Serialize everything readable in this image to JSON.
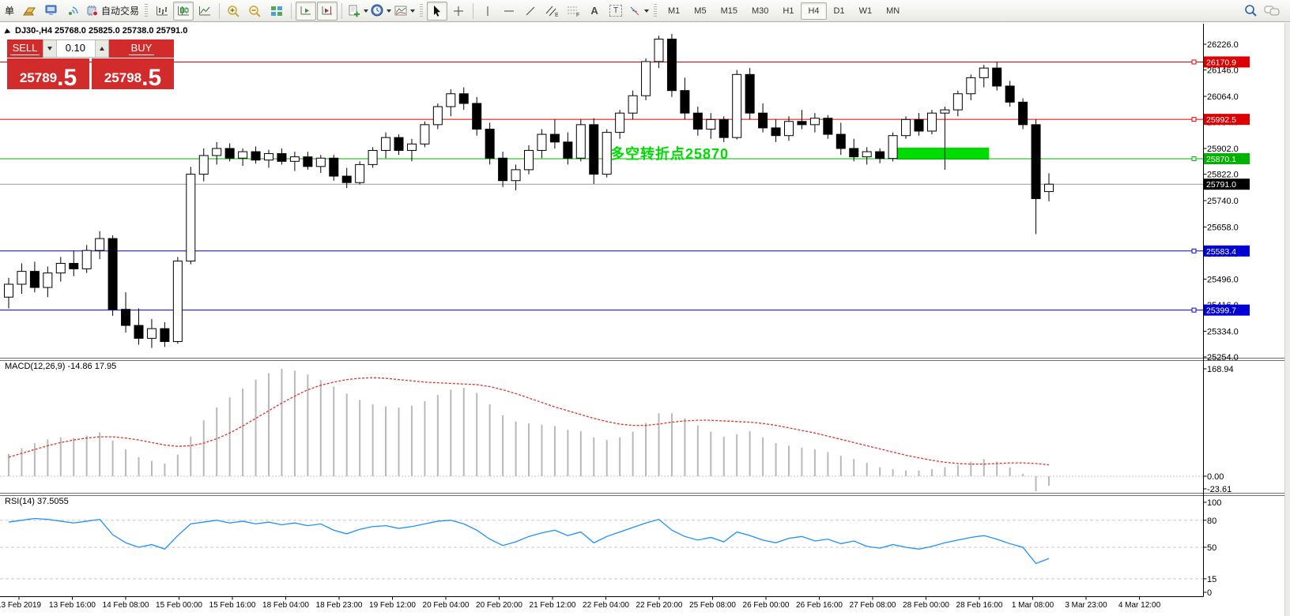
{
  "toolbar": {
    "partial_label": "单",
    "autotrade_label": "自动交易",
    "timeframes": [
      "M1",
      "M5",
      "M15",
      "M30",
      "H1",
      "H4",
      "D1",
      "W1",
      "MN"
    ],
    "active_timeframe": "H4"
  },
  "symbol_header": {
    "text": "DJ30-,H4 25768.0 25825.0 25738.0 25791.0"
  },
  "trade_panel": {
    "sell_label": "SELL",
    "buy_label": "BUY",
    "volume": "0.10",
    "sell_price_int": "25789",
    "sell_price_frac": ".5",
    "buy_price_int": "25798",
    "buy_price_frac": ".5",
    "panel_color": "#d22b2b"
  },
  "chart_data": {
    "type": "candlestick",
    "title": "DJ30-,H4",
    "main_scale": {
      "price_top": 26226,
      "price_bottom": 25254
    },
    "price_ticks": [
      "26226.0",
      "26146.0",
      "26064.0",
      "25984.0",
      "25902.0",
      "25822.0",
      "25740.0",
      "25658.0",
      "25576.0",
      "25496.0",
      "25416.0",
      "25334.0",
      "25254.0"
    ],
    "level_lines": [
      {
        "price": 26170.9,
        "label": "26170.9",
        "color": "red"
      },
      {
        "price": 25992.5,
        "label": "25992.5",
        "color": "red"
      },
      {
        "price": 25870.1,
        "label": "25870.1",
        "color": "green"
      },
      {
        "price": 25583.4,
        "label": "25583.4",
        "color": "blue"
      },
      {
        "price": 25399.7,
        "label": "25399.7",
        "color": "blue"
      }
    ],
    "bid": {
      "price": 25791.0,
      "label": "25791.0"
    },
    "annotation": {
      "text": "多空转折点25870"
    },
    "highlight": {
      "from_bar": 68.3,
      "to_bar": 75.4,
      "top_price": 25904.5,
      "bottom_price": 25867.6
    },
    "colors": {
      "bull": "#FFFFFF",
      "bear": "#000000",
      "wick": "#000000",
      "red_level": "#DD0000",
      "green_level": "#00B300",
      "blue_level": "#0000D6",
      "bid_line": "#9A9A9A",
      "bid_badge": "#000000",
      "macd_hist": "#B9B9B9",
      "macd_signal": "#E03030",
      "rsi": "#1E90FF",
      "grid_dash": "#C8C8C8",
      "highlight": "#00DC00",
      "annotation": "#00DC00"
    },
    "candles": [
      [
        25440,
        25500,
        25405,
        25480
      ],
      [
        25480,
        25545,
        25450,
        25520
      ],
      [
        25520,
        25550,
        25455,
        25470
      ],
      [
        25470,
        25535,
        25440,
        25515
      ],
      [
        25515,
        25565,
        25488,
        25545
      ],
      [
        25545,
        25585,
        25505,
        25528
      ],
      [
        25528,
        25602,
        25515,
        25585
      ],
      [
        25585,
        25645,
        25558,
        25622
      ],
      [
        25622,
        25632,
        25382,
        25402
      ],
      [
        25402,
        25455,
        25330,
        25352
      ],
      [
        25352,
        25405,
        25292,
        25312
      ],
      [
        25312,
        25372,
        25282,
        25342
      ],
      [
        25342,
        25362,
        25285,
        25302
      ],
      [
        25302,
        25565,
        25295,
        25552
      ],
      [
        25552,
        25845,
        25542,
        25822
      ],
      [
        25822,
        25902,
        25800,
        25880
      ],
      [
        25880,
        25922,
        25852,
        25902
      ],
      [
        25902,
        25918,
        25862,
        25872
      ],
      [
        25872,
        25902,
        25848,
        25892
      ],
      [
        25892,
        25908,
        25855,
        25866
      ],
      [
        25866,
        25898,
        25842,
        25886
      ],
      [
        25886,
        25902,
        25852,
        25862
      ],
      [
        25862,
        25892,
        25832,
        25876
      ],
      [
        25876,
        25892,
        25836,
        25846
      ],
      [
        25846,
        25882,
        25826,
        25872
      ],
      [
        25872,
        25882,
        25802,
        25816
      ],
      [
        25816,
        25842,
        25779,
        25796
      ],
      [
        25796,
        25862,
        25790,
        25852
      ],
      [
        25852,
        25906,
        25842,
        25896
      ],
      [
        25896,
        25952,
        25872,
        25936
      ],
      [
        25936,
        25946,
        25882,
        25896
      ],
      [
        25896,
        25932,
        25862,
        25916
      ],
      [
        25916,
        25986,
        25906,
        25976
      ],
      [
        25976,
        26042,
        25962,
        26032
      ],
      [
        26032,
        26086,
        26002,
        26072
      ],
      [
        26072,
        26092,
        26022,
        26042
      ],
      [
        26042,
        26062,
        25942,
        25962
      ],
      [
        25962,
        25982,
        25852,
        25872
      ],
      [
        25872,
        25892,
        25782,
        25802
      ],
      [
        25802,
        25852,
        25772,
        25836
      ],
      [
        25836,
        25912,
        25822,
        25896
      ],
      [
        25896,
        25962,
        25872,
        25946
      ],
      [
        25946,
        25992,
        25902,
        25922
      ],
      [
        25922,
        25952,
        25852,
        25872
      ],
      [
        25872,
        25992,
        25862,
        25976
      ],
      [
        25976,
        25996,
        25792,
        25822
      ],
      [
        25822,
        25962,
        25812,
        25952
      ],
      [
        25952,
        26022,
        25932,
        26012
      ],
      [
        26012,
        26082,
        25992,
        26066
      ],
      [
        26066,
        26182,
        26052,
        26172
      ],
      [
        26172,
        26252,
        26152,
        26242
      ],
      [
        26242,
        26258,
        26062,
        26082
      ],
      [
        26082,
        26122,
        25992,
        26012
      ],
      [
        26012,
        26032,
        25942,
        25962
      ],
      [
        25962,
        26012,
        25932,
        25992
      ],
      [
        25992,
        26002,
        25922,
        25936
      ],
      [
        25936,
        26146,
        25930,
        26132
      ],
      [
        26132,
        26152,
        25992,
        26012
      ],
      [
        26012,
        26042,
        25952,
        25966
      ],
      [
        25966,
        25992,
        25922,
        25942
      ],
      [
        25942,
        26002,
        25926,
        25986
      ],
      [
        25986,
        26022,
        25962,
        25976
      ],
      [
        25976,
        26012,
        25952,
        25996
      ],
      [
        25996,
        26006,
        25932,
        25946
      ],
      [
        25946,
        25982,
        25882,
        25902
      ],
      [
        25902,
        25932,
        25862,
        25876
      ],
      [
        25876,
        25906,
        25852,
        25892
      ],
      [
        25892,
        25902,
        25856,
        25871
      ],
      [
        25871,
        25952,
        25862,
        25942
      ],
      [
        25942,
        26002,
        25932,
        25992
      ],
      [
        25992,
        26012,
        25942,
        25956
      ],
      [
        25956,
        26022,
        25946,
        26012
      ],
      [
        26012,
        26032,
        25836,
        26022
      ],
      [
        26022,
        26082,
        26002,
        26072
      ],
      [
        26072,
        26132,
        26052,
        26122
      ],
      [
        26122,
        26162,
        26092,
        26152
      ],
      [
        26152,
        26172,
        26082,
        26096
      ],
      [
        26096,
        26112,
        26032,
        26046
      ],
      [
        26046,
        26058,
        25962,
        25976
      ],
      [
        25976,
        25992,
        25636,
        25746
      ],
      [
        25768,
        25825,
        25738,
        25791
      ]
    ],
    "x_labels": [
      "13 Feb 2019",
      "13 Feb 16:00",
      "14 Feb 08:00",
      "15 Feb 00:00",
      "15 Feb 16:00",
      "18 Feb 04:00",
      "18 Feb 23:00",
      "19 Feb 12:00",
      "20 Feb 04:00",
      "20 Feb 20:00",
      "21 Feb 12:00",
      "22 Feb 04:00",
      "22 Feb 20:00",
      "25 Feb 08:00",
      "26 Feb 00:00",
      "26 Feb 16:00",
      "27 Feb 08:00",
      "28 Feb 00:00",
      "28 Feb 16:00",
      "1 Mar 08:00",
      "3 Mar 23:00",
      "4 Mar 12:00"
    ],
    "macd": {
      "label": "MACD(12,26,9) -14.86 17.95",
      "max": 168.94,
      "min": -23.61,
      "ticks": [
        "168.94",
        "0.00",
        "-23.61"
      ],
      "histogram": [
        35,
        44,
        52,
        58,
        61,
        60,
        64,
        69,
        56,
        42,
        30,
        24,
        20,
        34,
        62,
        88,
        108,
        124,
        138,
        152,
        162,
        168.9,
        166,
        160,
        151,
        141,
        130,
        120,
        113,
        110,
        108,
        111,
        118,
        128,
        136,
        139,
        131,
        113,
        96,
        86,
        83,
        81,
        79,
        73,
        71,
        61,
        57,
        61,
        70,
        84,
        99,
        99,
        91,
        80,
        70,
        62,
        66,
        71,
        61,
        52,
        48,
        45,
        42,
        38,
        32,
        27,
        21,
        14,
        11,
        9,
        9,
        11,
        14,
        18,
        23,
        27,
        23,
        14,
        4,
        -23.61,
        -14.86
      ],
      "signal": [
        30,
        36,
        42,
        48,
        53,
        57,
        60,
        62,
        62,
        60,
        57,
        53,
        49,
        47,
        48,
        52,
        59,
        68,
        79,
        91,
        103,
        115,
        126,
        136,
        143,
        148,
        152,
        154,
        155,
        154,
        152,
        150,
        148,
        147,
        146,
        145,
        144,
        141,
        136,
        130,
        123,
        116,
        109,
        103,
        97,
        91,
        86,
        82,
        80,
        80,
        82,
        85,
        87,
        88,
        88,
        87,
        86,
        85,
        83,
        80,
        76,
        72,
        68,
        63,
        58,
        53,
        48,
        43,
        38,
        33,
        29,
        25,
        22,
        20,
        19,
        19,
        20,
        21,
        21,
        20,
        17.95
      ]
    },
    "rsi": {
      "label": "RSI(14) 37.5055",
      "ticks": [
        "100",
        "80",
        "50",
        "15",
        "0"
      ],
      "levels": [
        80,
        50,
        15
      ],
      "values": [
        78,
        80,
        82,
        81,
        79,
        77,
        79,
        81,
        64,
        55,
        50,
        53,
        48,
        63,
        76,
        78,
        80,
        77,
        79,
        76,
        78,
        75,
        77,
        74,
        76,
        69,
        65,
        70,
        73,
        74,
        71,
        73,
        76,
        79,
        80,
        76,
        69,
        59,
        52,
        56,
        62,
        66,
        69,
        63,
        67,
        55,
        62,
        67,
        72,
        77,
        81,
        69,
        62,
        58,
        61,
        56,
        67,
        63,
        58,
        55,
        60,
        62,
        57,
        59,
        54,
        57,
        51,
        49,
        53,
        50,
        48,
        51,
        55,
        58,
        61,
        63,
        59,
        54,
        50,
        32,
        37.5
      ]
    }
  }
}
